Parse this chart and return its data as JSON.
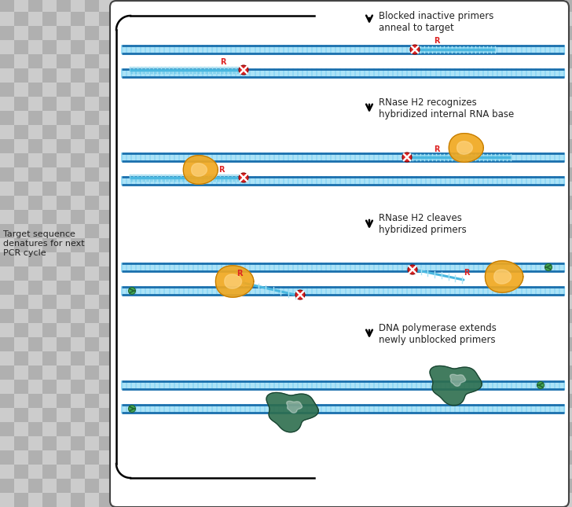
{
  "bg_checker_light": "#cccccc",
  "bg_checker_dark": "#b8b8b8",
  "panel_bg": "#ffffff",
  "dna_dark": "#1a6fad",
  "dna_light": "#5bc8f0",
  "dna_rung": "#8ed8f5",
  "primer_col": "#4ab8e0",
  "primer_rung": "#aae4f5",
  "rnase_col": "#f0a820",
  "rnase_outline": "#c07800",
  "poly_col": "#2d6e4e",
  "poly_outline": "#1a4030",
  "blocked_col": "#dd2222",
  "text_col": "#222222",
  "arrow_col": "#111111",
  "step1_label": "Blocked inactive primers\nanneal to target",
  "step2_label": "RNase H2 recognizes\nhybridized internal RNA base",
  "step3_label": "RNase H2 cleaves\nhybridized primers",
  "step4_label": "DNA polymerase extends\nnewly unblocked primers",
  "left_label": "Target sequence\ndenatures for next\nPCR cycle"
}
